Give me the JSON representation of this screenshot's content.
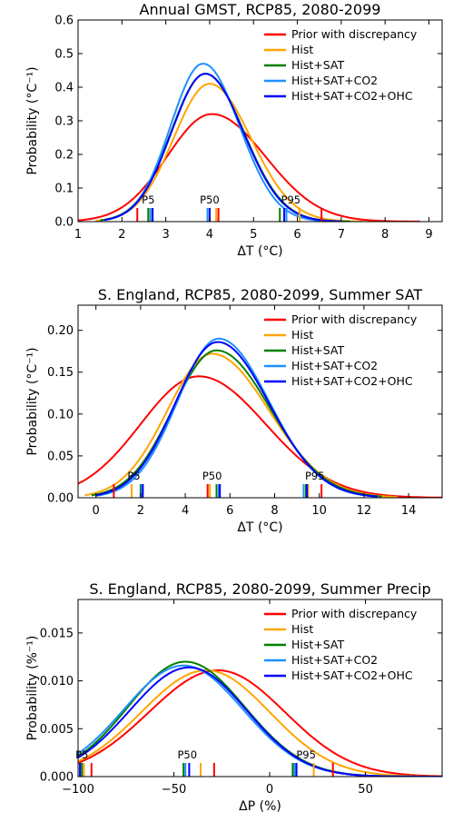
{
  "colors": {
    "prior": "#ff0000",
    "hist": "#ffa500",
    "hist_sat": "#008000",
    "hist_sat_co2": "#1e90ff",
    "hist_sat_co2_ohc": "#0000ff"
  },
  "chart_data": [
    {
      "type": "line",
      "title": "Annual GMST, RCP85, 2080-2099",
      "xlabel": "ΔT (°C)",
      "ylabel": "Probability (°C⁻¹)",
      "xlim": [
        1,
        9.3
      ],
      "ylim": [
        0,
        0.6
      ],
      "xticks": [
        1,
        2,
        3,
        4,
        5,
        6,
        7,
        8,
        9
      ],
      "yticks": [
        0.0,
        0.1,
        0.2,
        0.3,
        0.4,
        0.5,
        0.6
      ],
      "xtick_labels": [
        "1",
        "2",
        "3",
        "4",
        "5",
        "6",
        "7",
        "8",
        "9"
      ],
      "ytick_labels": [
        "0.0",
        "0.1",
        "0.2",
        "0.3",
        "0.4",
        "0.5",
        "0.6"
      ],
      "legend_position": "top-right",
      "percentile_labels": [
        {
          "text": "P5",
          "x": 2.6
        },
        {
          "text": "P50",
          "x": 4.0
        },
        {
          "text": "P95",
          "x": 5.85
        }
      ],
      "series": [
        {
          "name": "Prior with discrepancy",
          "color_key": "prior",
          "mode": 4.05,
          "peak": 0.32,
          "sd_left": 1.02,
          "sd_right": 1.22,
          "percentiles": [
            2.35,
            4.2,
            6.55
          ],
          "x_range": [
            1,
            8.8
          ]
        },
        {
          "name": "Hist",
          "color_key": "hist",
          "mode": 4.0,
          "peak": 0.41,
          "sd_left": 0.82,
          "sd_right": 0.94,
          "percentiles": [
            2.65,
            4.15,
            6.05
          ],
          "x_range": [
            1.4,
            7.5
          ]
        },
        {
          "name": "Hist+SAT",
          "color_key": "hist_sat",
          "mode": 3.9,
          "peak": 0.44,
          "sd_left": 0.78,
          "sd_right": 0.88,
          "percentiles": [
            2.6,
            4.0,
            5.6
          ],
          "x_range": [
            1.5,
            7.2
          ]
        },
        {
          "name": "Hist+SAT+CO2",
          "color_key": "hist_sat_co2",
          "mode": 3.85,
          "peak": 0.47,
          "sd_left": 0.74,
          "sd_right": 0.83,
          "percentiles": [
            2.65,
            3.95,
            5.75
          ],
          "x_range": [
            1.6,
            7.0
          ]
        },
        {
          "name": "Hist+SAT+CO2+OHC",
          "color_key": "hist_sat_co2_ohc",
          "mode": 3.9,
          "peak": 0.44,
          "sd_left": 0.77,
          "sd_right": 0.87,
          "percentiles": [
            2.7,
            4.0,
            5.7
          ],
          "x_range": [
            1.6,
            7.0
          ]
        }
      ]
    },
    {
      "type": "line",
      "title": "S. England, RCP85, 2080-2099, Summer SAT",
      "xlabel": "ΔT (°C)",
      "ylabel": "Probability (°C⁻¹)",
      "xlim": [
        -0.8,
        15.5
      ],
      "ylim": [
        0,
        0.23
      ],
      "xticks": [
        0,
        2,
        4,
        6,
        8,
        10,
        12,
        14
      ],
      "yticks": [
        0.0,
        0.05,
        0.1,
        0.15,
        0.2
      ],
      "xtick_labels": [
        "0",
        "2",
        "4",
        "6",
        "8",
        "10",
        "12",
        "14"
      ],
      "ytick_labels": [
        "0.00",
        "0.05",
        "0.10",
        "0.15",
        "0.20"
      ],
      "legend_position": "top-right",
      "percentile_labels": [
        {
          "text": "P5",
          "x": 1.7
        },
        {
          "text": "P50",
          "x": 5.2
        },
        {
          "text": "P95",
          "x": 9.8
        }
      ],
      "series": [
        {
          "name": "Prior with discrepancy",
          "color_key": "prior",
          "mode": 4.6,
          "peak": 0.145,
          "sd_left": 2.6,
          "sd_right": 3.0,
          "percentiles": [
            0.8,
            5.0,
            10.1
          ],
          "x_range": [
            -0.8,
            15.5
          ]
        },
        {
          "name": "Hist",
          "color_key": "hist",
          "mode": 5.2,
          "peak": 0.172,
          "sd_left": 2.0,
          "sd_right": 2.55,
          "percentiles": [
            1.6,
            5.1,
            9.5
          ],
          "x_range": [
            -0.5,
            13.5
          ]
        },
        {
          "name": "Hist+SAT",
          "color_key": "hist_sat",
          "mode": 5.4,
          "peak": 0.176,
          "sd_left": 1.95,
          "sd_right": 2.4,
          "percentiles": [
            2.0,
            5.4,
            9.4
          ],
          "x_range": [
            -0.2,
            12.8
          ]
        },
        {
          "name": "Hist+SAT+CO2",
          "color_key": "hist_sat_co2",
          "mode": 5.5,
          "peak": 0.19,
          "sd_left": 1.85,
          "sd_right": 2.25,
          "percentiles": [
            2.05,
            5.5,
            9.3
          ],
          "x_range": [
            0.0,
            12.5
          ]
        },
        {
          "name": "Hist+SAT+CO2+OHC",
          "color_key": "hist_sat_co2_ohc",
          "mode": 5.45,
          "peak": 0.186,
          "sd_left": 1.9,
          "sd_right": 2.3,
          "percentiles": [
            2.1,
            5.55,
            9.45
          ],
          "x_range": [
            0.0,
            12.6
          ]
        }
      ]
    },
    {
      "type": "line",
      "title": "S. England, RCP85, 2080-2099, Summer Precip",
      "xlabel": "ΔP (%)",
      "ylabel": "Probability (%⁻¹)",
      "xlim": [
        -100,
        90
      ],
      "ylim": [
        0,
        0.0185
      ],
      "xticks": [
        -100,
        -50,
        0,
        50
      ],
      "yticks": [
        0.0,
        0.005,
        0.01,
        0.015
      ],
      "xtick_labels": [
        "−100",
        "−50",
        "0",
        "50"
      ],
      "ytick_labels": [
        "0.000",
        "0.005",
        "0.010",
        "0.015"
      ],
      "legend_position": "top-right",
      "percentile_labels": [
        {
          "text": "P5",
          "x": -98
        },
        {
          "text": "P50",
          "x": -43
        },
        {
          "text": "P95",
          "x": 19
        }
      ],
      "series": [
        {
          "name": "Prior with discrepancy",
          "color_key": "prior",
          "mode": -27,
          "peak": 0.0111,
          "sd_left": 36,
          "sd_right": 35,
          "percentiles": [
            -93,
            -29,
            33
          ],
          "x_range": [
            -100,
            90
          ]
        },
        {
          "name": "Hist",
          "color_key": "hist",
          "mode": -33,
          "peak": 0.0111,
          "sd_left": 34,
          "sd_right": 33,
          "percentiles": [
            -97,
            -36,
            23
          ],
          "x_range": [
            -100,
            90
          ]
        },
        {
          "name": "Hist+SAT",
          "color_key": "hist_sat",
          "mode": -44,
          "peak": 0.012,
          "sd_left": 30,
          "sd_right": 31,
          "percentiles": [
            -98,
            -45,
            12
          ],
          "x_range": [
            -100,
            90
          ]
        },
        {
          "name": "Hist+SAT+CO2",
          "color_key": "hist_sat_co2",
          "mode": -45,
          "peak": 0.0116,
          "sd_left": 31,
          "sd_right": 31,
          "percentiles": [
            -99,
            -44,
            13
          ],
          "x_range": [
            -100,
            90
          ]
        },
        {
          "name": "Hist+SAT+CO2+OHC",
          "color_key": "hist_sat_co2_ohc",
          "mode": -42,
          "peak": 0.0114,
          "sd_left": 31,
          "sd_right": 30,
          "percentiles": [
            -99,
            -42,
            14
          ],
          "x_range": [
            -100,
            90
          ]
        }
      ]
    }
  ]
}
